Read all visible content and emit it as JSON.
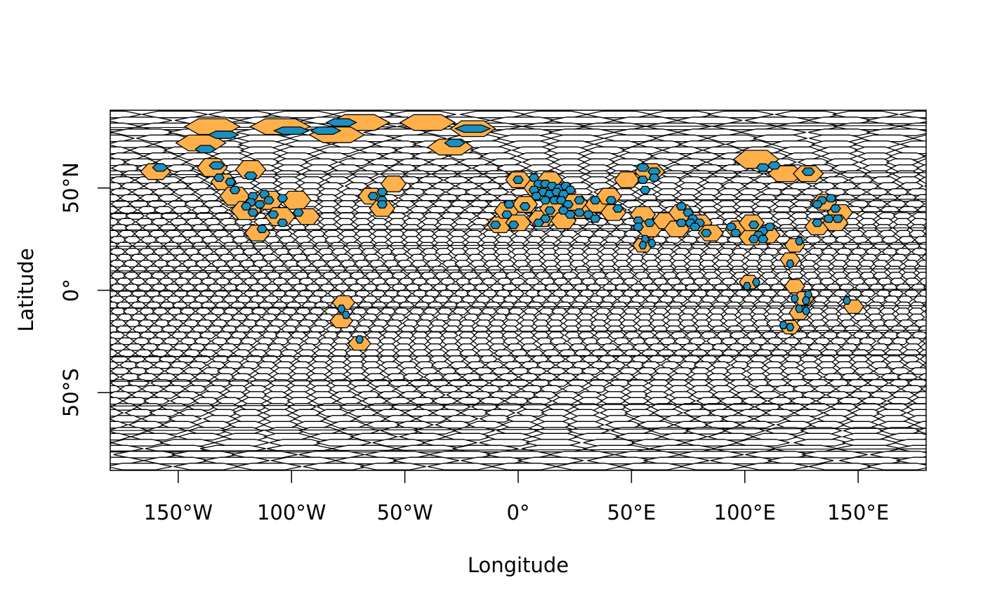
{
  "chart_data": {
    "type": "map",
    "title": "",
    "xlabel": "Longitude",
    "ylabel": "Latitude",
    "xlim": [
      -180,
      180
    ],
    "ylim": [
      -88,
      88
    ],
    "x_ticks": [
      {
        "value": -150,
        "label": "150°W"
      },
      {
        "value": -100,
        "label": "100°W"
      },
      {
        "value": -50,
        "label": "50°W"
      },
      {
        "value": 0,
        "label": "0°"
      },
      {
        "value": 50,
        "label": "50°E"
      },
      {
        "value": 100,
        "label": "100°E"
      },
      {
        "value": 150,
        "label": "150°E"
      }
    ],
    "y_ticks": [
      {
        "value": 50,
        "label": "50°N"
      },
      {
        "value": 0,
        "label": "0°"
      },
      {
        "value": -50,
        "label": "50°S"
      }
    ],
    "colors": {
      "cell_fill": "#ffffff",
      "cell_stroke": "#000000",
      "highlight_fill": "#ffb04a",
      "point_fill": "#1b8fbf"
    },
    "highlighted_cells": [
      {
        "lon": -135,
        "lat": 80,
        "w": 22,
        "h": 7
      },
      {
        "lon": -105,
        "lat": 80,
        "w": 24,
        "h": 7
      },
      {
        "lon": -70,
        "lat": 82,
        "w": 24,
        "h": 7
      },
      {
        "lon": -40,
        "lat": 82,
        "w": 22,
        "h": 7
      },
      {
        "lon": -20,
        "lat": 79,
        "w": 18,
        "h": 7
      },
      {
        "lon": -80,
        "lat": 76,
        "w": 22,
        "h": 7
      },
      {
        "lon": -140,
        "lat": 72,
        "w": 20,
        "h": 7
      },
      {
        "lon": -30,
        "lat": 70,
        "w": 18,
        "h": 7
      },
      {
        "lon": -160,
        "lat": 58,
        "w": 12,
        "h": 7
      },
      {
        "lon": -135,
        "lat": 60,
        "w": 12,
        "h": 8
      },
      {
        "lon": -118,
        "lat": 59,
        "w": 12,
        "h": 8
      },
      {
        "lon": -130,
        "lat": 53,
        "w": 10,
        "h": 7
      },
      {
        "lon": -125,
        "lat": 46,
        "w": 12,
        "h": 8
      },
      {
        "lon": -110,
        "lat": 44,
        "w": 12,
        "h": 8
      },
      {
        "lon": -98,
        "lat": 44,
        "w": 12,
        "h": 8
      },
      {
        "lon": -120,
        "lat": 39,
        "w": 12,
        "h": 8
      },
      {
        "lon": -105,
        "lat": 36,
        "w": 12,
        "h": 8
      },
      {
        "lon": -93,
        "lat": 36,
        "w": 10,
        "h": 7
      },
      {
        "lon": -115,
        "lat": 28,
        "w": 10,
        "h": 7
      },
      {
        "lon": -65,
        "lat": 46,
        "w": 10,
        "h": 7
      },
      {
        "lon": -55,
        "lat": 52,
        "w": 10,
        "h": 7
      },
      {
        "lon": -60,
        "lat": 40,
        "w": 10,
        "h": 7
      },
      {
        "lon": -77,
        "lat": -6,
        "w": 9,
        "h": 6
      },
      {
        "lon": -78,
        "lat": -15,
        "w": 9,
        "h": 6
      },
      {
        "lon": -70,
        "lat": -26,
        "w": 9,
        "h": 6
      },
      {
        "lon": -8,
        "lat": 32,
        "w": 10,
        "h": 7
      },
      {
        "lon": -5,
        "lat": 39,
        "w": 10,
        "h": 7
      },
      {
        "lon": 0,
        "lat": 33,
        "w": 10,
        "h": 7
      },
      {
        "lon": 3,
        "lat": 42,
        "w": 10,
        "h": 7
      },
      {
        "lon": 10,
        "lat": 35,
        "w": 10,
        "h": 7
      },
      {
        "lon": 15,
        "lat": 40,
        "w": 10,
        "h": 7
      },
      {
        "lon": 20,
        "lat": 34,
        "w": 10,
        "h": 7
      },
      {
        "lon": 28,
        "lat": 39,
        "w": 10,
        "h": 7
      },
      {
        "lon": 35,
        "lat": 42,
        "w": 10,
        "h": 7
      },
      {
        "lon": 42,
        "lat": 38,
        "w": 10,
        "h": 7
      },
      {
        "lon": 0,
        "lat": 54,
        "w": 10,
        "h": 7
      },
      {
        "lon": 8,
        "lat": 50,
        "w": 10,
        "h": 7
      },
      {
        "lon": 14,
        "lat": 54,
        "w": 10,
        "h": 7
      },
      {
        "lon": 20,
        "lat": 48,
        "w": 10,
        "h": 7
      },
      {
        "lon": 25,
        "lat": 43,
        "w": 10,
        "h": 7
      },
      {
        "lon": 40,
        "lat": 46,
        "w": 10,
        "h": 7
      },
      {
        "lon": 48,
        "lat": 54,
        "w": 10,
        "h": 7
      },
      {
        "lon": 58,
        "lat": 58,
        "w": 12,
        "h": 7
      },
      {
        "lon": 55,
        "lat": 37,
        "w": 10,
        "h": 7
      },
      {
        "lon": 58,
        "lat": 30,
        "w": 10,
        "h": 7
      },
      {
        "lon": 55,
        "lat": 22,
        "w": 8,
        "h": 6
      },
      {
        "lon": 65,
        "lat": 34,
        "w": 10,
        "h": 7
      },
      {
        "lon": 72,
        "lat": 38,
        "w": 10,
        "h": 7
      },
      {
        "lon": 70,
        "lat": 30,
        "w": 10,
        "h": 7
      },
      {
        "lon": 80,
        "lat": 33,
        "w": 10,
        "h": 7
      },
      {
        "lon": 85,
        "lat": 28,
        "w": 10,
        "h": 7
      },
      {
        "lon": 97,
        "lat": 30,
        "w": 10,
        "h": 7
      },
      {
        "lon": 103,
        "lat": 26,
        "w": 10,
        "h": 7
      },
      {
        "lon": 110,
        "lat": 27,
        "w": 10,
        "h": 7
      },
      {
        "lon": 103,
        "lat": 33,
        "w": 10,
        "h": 7
      },
      {
        "lon": 105,
        "lat": 64,
        "w": 18,
        "h": 8
      },
      {
        "lon": 118,
        "lat": 57,
        "w": 14,
        "h": 7
      },
      {
        "lon": 128,
        "lat": 57,
        "w": 12,
        "h": 7
      },
      {
        "lon": 122,
        "lat": 22,
        "w": 8,
        "h": 6
      },
      {
        "lon": 120,
        "lat": 15,
        "w": 8,
        "h": 6
      },
      {
        "lon": 102,
        "lat": 4,
        "w": 8,
        "h": 6
      },
      {
        "lon": 122,
        "lat": 2,
        "w": 8,
        "h": 6
      },
      {
        "lon": 126,
        "lat": -4,
        "w": 8,
        "h": 6
      },
      {
        "lon": 124,
        "lat": -11,
        "w": 8,
        "h": 6
      },
      {
        "lon": 120,
        "lat": -18,
        "w": 8,
        "h": 6
      },
      {
        "lon": 148,
        "lat": -8,
        "w": 8,
        "h": 6
      },
      {
        "lon": 135,
        "lat": 43,
        "w": 10,
        "h": 7
      },
      {
        "lon": 142,
        "lat": 38,
        "w": 10,
        "h": 7
      },
      {
        "lon": 132,
        "lat": 31,
        "w": 10,
        "h": 7
      },
      {
        "lon": 140,
        "lat": 33,
        "w": 10,
        "h": 7
      }
    ],
    "points": [
      {
        "lon": -130,
        "lat": 76,
        "w": 12,
        "h": 3
      },
      {
        "lon": -100,
        "lat": 78,
        "w": 14,
        "h": 3
      },
      {
        "lon": -85,
        "lat": 78,
        "w": 12,
        "h": 3
      },
      {
        "lon": -78,
        "lat": 82,
        "w": 12,
        "h": 3
      },
      {
        "lon": -20,
        "lat": 79,
        "w": 14,
        "h": 3
      },
      {
        "lon": -28,
        "lat": 72,
        "w": 8,
        "h": 3
      },
      {
        "lon": -138,
        "lat": 69,
        "w": 8,
        "h": 3
      },
      {
        "lon": -158,
        "lat": 60,
        "w": 6,
        "h": 3
      },
      {
        "lon": -133,
        "lat": 61,
        "w": 6,
        "h": 3
      },
      {
        "lon": -118,
        "lat": 56,
        "w": 5,
        "h": 3
      },
      {
        "lon": -132,
        "lat": 55,
        "w": 4,
        "h": 3
      },
      {
        "lon": -127,
        "lat": 53,
        "w": 4,
        "h": 3
      },
      {
        "lon": -125,
        "lat": 49,
        "w": 4,
        "h": 3
      },
      {
        "lon": -117,
        "lat": 46,
        "w": 4,
        "h": 3
      },
      {
        "lon": -112,
        "lat": 47,
        "w": 4,
        "h": 3
      },
      {
        "lon": -118,
        "lat": 43,
        "w": 4,
        "h": 3
      },
      {
        "lon": -114,
        "lat": 42,
        "w": 4,
        "h": 3
      },
      {
        "lon": -110,
        "lat": 44,
        "w": 4,
        "h": 3
      },
      {
        "lon": -120,
        "lat": 41,
        "w": 4,
        "h": 3
      },
      {
        "lon": -117,
        "lat": 38,
        "w": 4,
        "h": 3
      },
      {
        "lon": -104,
        "lat": 45,
        "w": 4,
        "h": 3
      },
      {
        "lon": -108,
        "lat": 37,
        "w": 4,
        "h": 3
      },
      {
        "lon": -97,
        "lat": 38,
        "w": 4,
        "h": 3
      },
      {
        "lon": -104,
        "lat": 33,
        "w": 4,
        "h": 3
      },
      {
        "lon": -113,
        "lat": 30,
        "w": 4,
        "h": 3
      },
      {
        "lon": -64,
        "lat": 46,
        "w": 4,
        "h": 3
      },
      {
        "lon": -60,
        "lat": 48,
        "w": 4,
        "h": 3
      },
      {
        "lon": -60,
        "lat": 44,
        "w": 4,
        "h": 3
      },
      {
        "lon": -60,
        "lat": 42,
        "w": 4,
        "h": 3
      },
      {
        "lon": -78,
        "lat": -9,
        "w": 3,
        "h": 3
      },
      {
        "lon": -76,
        "lat": -12,
        "w": 3,
        "h": 3
      },
      {
        "lon": -70,
        "lat": -24,
        "w": 3,
        "h": 3
      },
      {
        "lon": -10,
        "lat": 32,
        "w": 4,
        "h": 3
      },
      {
        "lon": -5,
        "lat": 37,
        "w": 4,
        "h": 3
      },
      {
        "lon": -4,
        "lat": 42,
        "w": 4,
        "h": 3
      },
      {
        "lon": -2,
        "lat": 32,
        "w": 4,
        "h": 3
      },
      {
        "lon": 3,
        "lat": 41,
        "w": 4,
        "h": 3
      },
      {
        "lon": 0,
        "lat": 54,
        "w": 4,
        "h": 3
      },
      {
        "lon": 7,
        "lat": 55,
        "w": 4,
        "h": 3
      },
      {
        "lon": 9,
        "lat": 52,
        "w": 4,
        "h": 3
      },
      {
        "lon": 12,
        "lat": 52,
        "w": 4,
        "h": 3
      },
      {
        "lon": 15,
        "lat": 51,
        "w": 4,
        "h": 3
      },
      {
        "lon": 18,
        "lat": 50,
        "w": 4,
        "h": 3
      },
      {
        "lon": 21,
        "lat": 51,
        "w": 4,
        "h": 3
      },
      {
        "lon": 23,
        "lat": 49,
        "w": 4,
        "h": 3
      },
      {
        "lon": 7,
        "lat": 49,
        "w": 4,
        "h": 3
      },
      {
        "lon": 11,
        "lat": 48,
        "w": 4,
        "h": 3
      },
      {
        "lon": 14,
        "lat": 47,
        "w": 4,
        "h": 3
      },
      {
        "lon": 17,
        "lat": 48,
        "w": 4,
        "h": 3
      },
      {
        "lon": 20,
        "lat": 47,
        "w": 4,
        "h": 3
      },
      {
        "lon": 8,
        "lat": 46,
        "w": 4,
        "h": 3
      },
      {
        "lon": 12,
        "lat": 44,
        "w": 4,
        "h": 3
      },
      {
        "lon": 16,
        "lat": 44,
        "w": 4,
        "h": 3
      },
      {
        "lon": 19,
        "lat": 44,
        "w": 4,
        "h": 3
      },
      {
        "lon": 22,
        "lat": 42,
        "w": 4,
        "h": 3
      },
      {
        "lon": 14,
        "lat": 39,
        "w": 4,
        "h": 3
      },
      {
        "lon": 12,
        "lat": 35,
        "w": 4,
        "h": 3
      },
      {
        "lon": 9,
        "lat": 33,
        "w": 4,
        "h": 3
      },
      {
        "lon": 20,
        "lat": 39,
        "w": 4,
        "h": 3
      },
      {
        "lon": 23,
        "lat": 37,
        "w": 4,
        "h": 3
      },
      {
        "lon": 27,
        "lat": 38,
        "w": 4,
        "h": 3
      },
      {
        "lon": 31,
        "lat": 37,
        "w": 4,
        "h": 3
      },
      {
        "lon": 34,
        "lat": 35,
        "w": 4,
        "h": 3
      },
      {
        "lon": 27,
        "lat": 44,
        "w": 4,
        "h": 3
      },
      {
        "lon": 34,
        "lat": 44,
        "w": 4,
        "h": 3
      },
      {
        "lon": 44,
        "lat": 40,
        "w": 4,
        "h": 3
      },
      {
        "lon": 41,
        "lat": 44,
        "w": 4,
        "h": 3
      },
      {
        "lon": 55,
        "lat": 60,
        "w": 5,
        "h": 3
      },
      {
        "lon": 60,
        "lat": 58,
        "w": 5,
        "h": 3
      },
      {
        "lon": 55,
        "lat": 54,
        "w": 4,
        "h": 3
      },
      {
        "lon": 60,
        "lat": 55,
        "w": 4,
        "h": 3
      },
      {
        "lon": 56,
        "lat": 49,
        "w": 4,
        "h": 3
      },
      {
        "lon": 53,
        "lat": 34,
        "w": 4,
        "h": 3
      },
      {
        "lon": 53,
        "lat": 31,
        "w": 4,
        "h": 3
      },
      {
        "lon": 58,
        "lat": 33,
        "w": 4,
        "h": 3
      },
      {
        "lon": 56,
        "lat": 25,
        "w": 3,
        "h": 3
      },
      {
        "lon": 55,
        "lat": 22,
        "w": 3,
        "h": 3
      },
      {
        "lon": 59,
        "lat": 23,
        "w": 3,
        "h": 3
      },
      {
        "lon": 72,
        "lat": 41,
        "w": 4,
        "h": 3
      },
      {
        "lon": 75,
        "lat": 38,
        "w": 4,
        "h": 3
      },
      {
        "lon": 77,
        "lat": 35,
        "w": 4,
        "h": 3
      },
      {
        "lon": 72,
        "lat": 33,
        "w": 4,
        "h": 3
      },
      {
        "lon": 76,
        "lat": 33,
        "w": 4,
        "h": 3
      },
      {
        "lon": 80,
        "lat": 33,
        "w": 4,
        "h": 3
      },
      {
        "lon": 78,
        "lat": 31,
        "w": 4,
        "h": 3
      },
      {
        "lon": 83,
        "lat": 28,
        "w": 4,
        "h": 3
      },
      {
        "lon": 94,
        "lat": 31,
        "w": 4,
        "h": 3
      },
      {
        "lon": 96,
        "lat": 28,
        "w": 4,
        "h": 3
      },
      {
        "lon": 104,
        "lat": 32,
        "w": 4,
        "h": 3
      },
      {
        "lon": 108,
        "lat": 29,
        "w": 4,
        "h": 3
      },
      {
        "lon": 111,
        "lat": 31,
        "w": 4,
        "h": 3
      },
      {
        "lon": 106,
        "lat": 27,
        "w": 4,
        "h": 3
      },
      {
        "lon": 104,
        "lat": 25,
        "w": 4,
        "h": 3
      },
      {
        "lon": 108,
        "lat": 25,
        "w": 4,
        "h": 3
      },
      {
        "lon": 108,
        "lat": 60,
        "w": 5,
        "h": 3
      },
      {
        "lon": 113,
        "lat": 61,
        "w": 5,
        "h": 3
      },
      {
        "lon": 128,
        "lat": 58,
        "w": 5,
        "h": 3
      },
      {
        "lon": 124,
        "lat": 24,
        "w": 3,
        "h": 3
      },
      {
        "lon": 120,
        "lat": 13,
        "w": 3,
        "h": 3
      },
      {
        "lon": 101,
        "lat": 2,
        "w": 3,
        "h": 3
      },
      {
        "lon": 105,
        "lat": 4,
        "w": 3,
        "h": 3
      },
      {
        "lon": 122,
        "lat": -4,
        "w": 3,
        "h": 3
      },
      {
        "lon": 128,
        "lat": -2,
        "w": 3,
        "h": 3
      },
      {
        "lon": 127,
        "lat": -5,
        "w": 3,
        "h": 3
      },
      {
        "lon": 124,
        "lat": -9,
        "w": 3,
        "h": 3
      },
      {
        "lon": 127,
        "lat": -10,
        "w": 3,
        "h": 3
      },
      {
        "lon": 117,
        "lat": -17,
        "w": 3,
        "h": 3
      },
      {
        "lon": 120,
        "lat": -18,
        "w": 3,
        "h": 3
      },
      {
        "lon": 145,
        "lat": -5,
        "w": 3,
        "h": 3
      },
      {
        "lon": 134,
        "lat": 44,
        "w": 4,
        "h": 3
      },
      {
        "lon": 138,
        "lat": 45,
        "w": 4,
        "h": 3
      },
      {
        "lon": 132,
        "lat": 42,
        "w": 4,
        "h": 3
      },
      {
        "lon": 140,
        "lat": 40,
        "w": 4,
        "h": 3
      },
      {
        "lon": 137,
        "lat": 35,
        "w": 4,
        "h": 3
      },
      {
        "lon": 141,
        "lat": 35,
        "w": 4,
        "h": 3
      },
      {
        "lon": 132,
        "lat": 33,
        "w": 4,
        "h": 3
      }
    ]
  }
}
